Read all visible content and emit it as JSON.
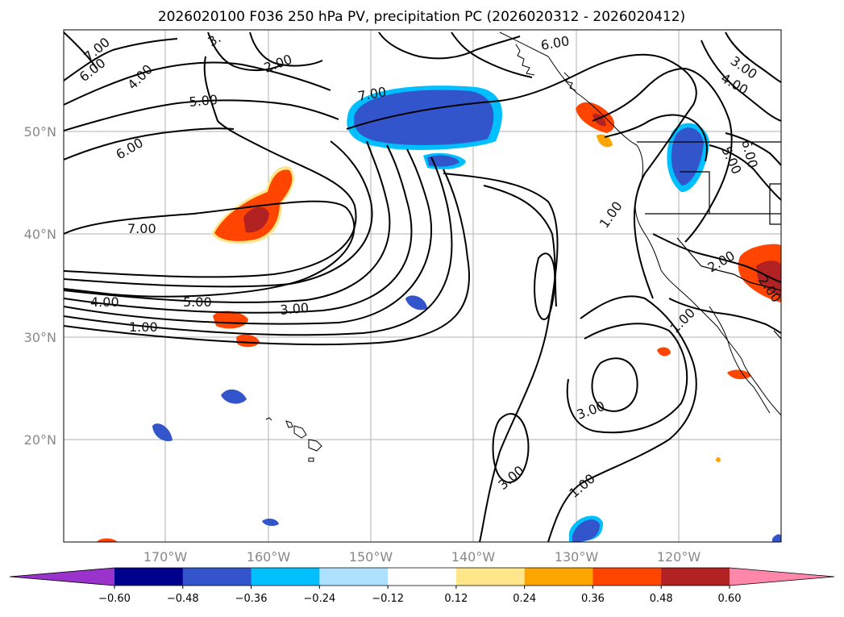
{
  "title": "2026020100 F036 250 hPa PV, precipitation PC (2026020312 - 2026020412)",
  "lat_labels": [
    "50°N",
    "40°N",
    "30°N",
    "20°N"
  ],
  "lon_labels": [
    "170°W",
    "160°W",
    "150°W",
    "140°W",
    "130°W",
    "120°W"
  ],
  "contour_labels": [
    "7.00",
    "6.00",
    "4.00",
    "3.",
    "2.00",
    "5.00",
    "6.00",
    "7.00",
    "7.00",
    "5.00",
    "4.00",
    "3.00",
    "1.00",
    "1.00",
    "2.00",
    "2.00",
    "1.00",
    "3.00",
    "3.00",
    "1.00",
    "3.00",
    "4.00",
    "5.00",
    "6.00",
    "6.00"
  ],
  "colorbar": {
    "ticks": [
      "−0.60",
      "−0.48",
      "−0.36",
      "−0.24",
      "−0.12",
      "0.12",
      "0.24",
      "0.36",
      "0.48",
      "0.60"
    ],
    "colors": [
      "#9933cc",
      "#00008b",
      "#3355cc",
      "#00bfff",
      "#aee0ff",
      "#ffffff",
      "#ffe68a",
      "#ffa500",
      "#ff4500",
      "#b22222",
      "#ff88aa"
    ]
  },
  "colors": {
    "land": "#ffffff",
    "ocean": "#ffffff",
    "grid": "#b0b0b0",
    "coast": "#000000",
    "contour": "#000000"
  }
}
